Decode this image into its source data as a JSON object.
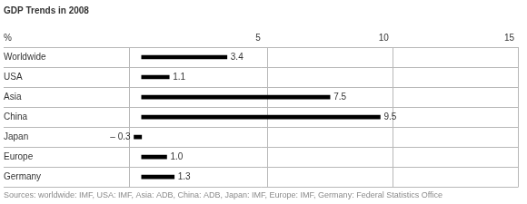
{
  "chart_data": {
    "type": "bar",
    "orientation": "horizontal",
    "title": "GDP Trends in 2008",
    "xlabel": "%",
    "source": "Sources: worldwide: IMF, USA: IMF, Asia: ADB, China: ADB, Japan: IMF, Europe: IMF, Germany: Federal Statistics Office",
    "categories": [
      "Worldwide",
      "USA",
      "Asia",
      "China",
      "Japan",
      "Europe",
      "Germany"
    ],
    "values": [
      3.4,
      1.1,
      7.5,
      9.5,
      -0.3,
      1.0,
      1.3
    ],
    "value_labels": [
      "3.4",
      "1.1",
      "7.5",
      "9.5",
      "– 0.3",
      "1.0",
      "1.3"
    ],
    "data_labels": true,
    "color": "#000000",
    "xlim": [
      -0.5,
      15
    ],
    "xticks": [
      5,
      10,
      15
    ],
    "grid": true
  }
}
